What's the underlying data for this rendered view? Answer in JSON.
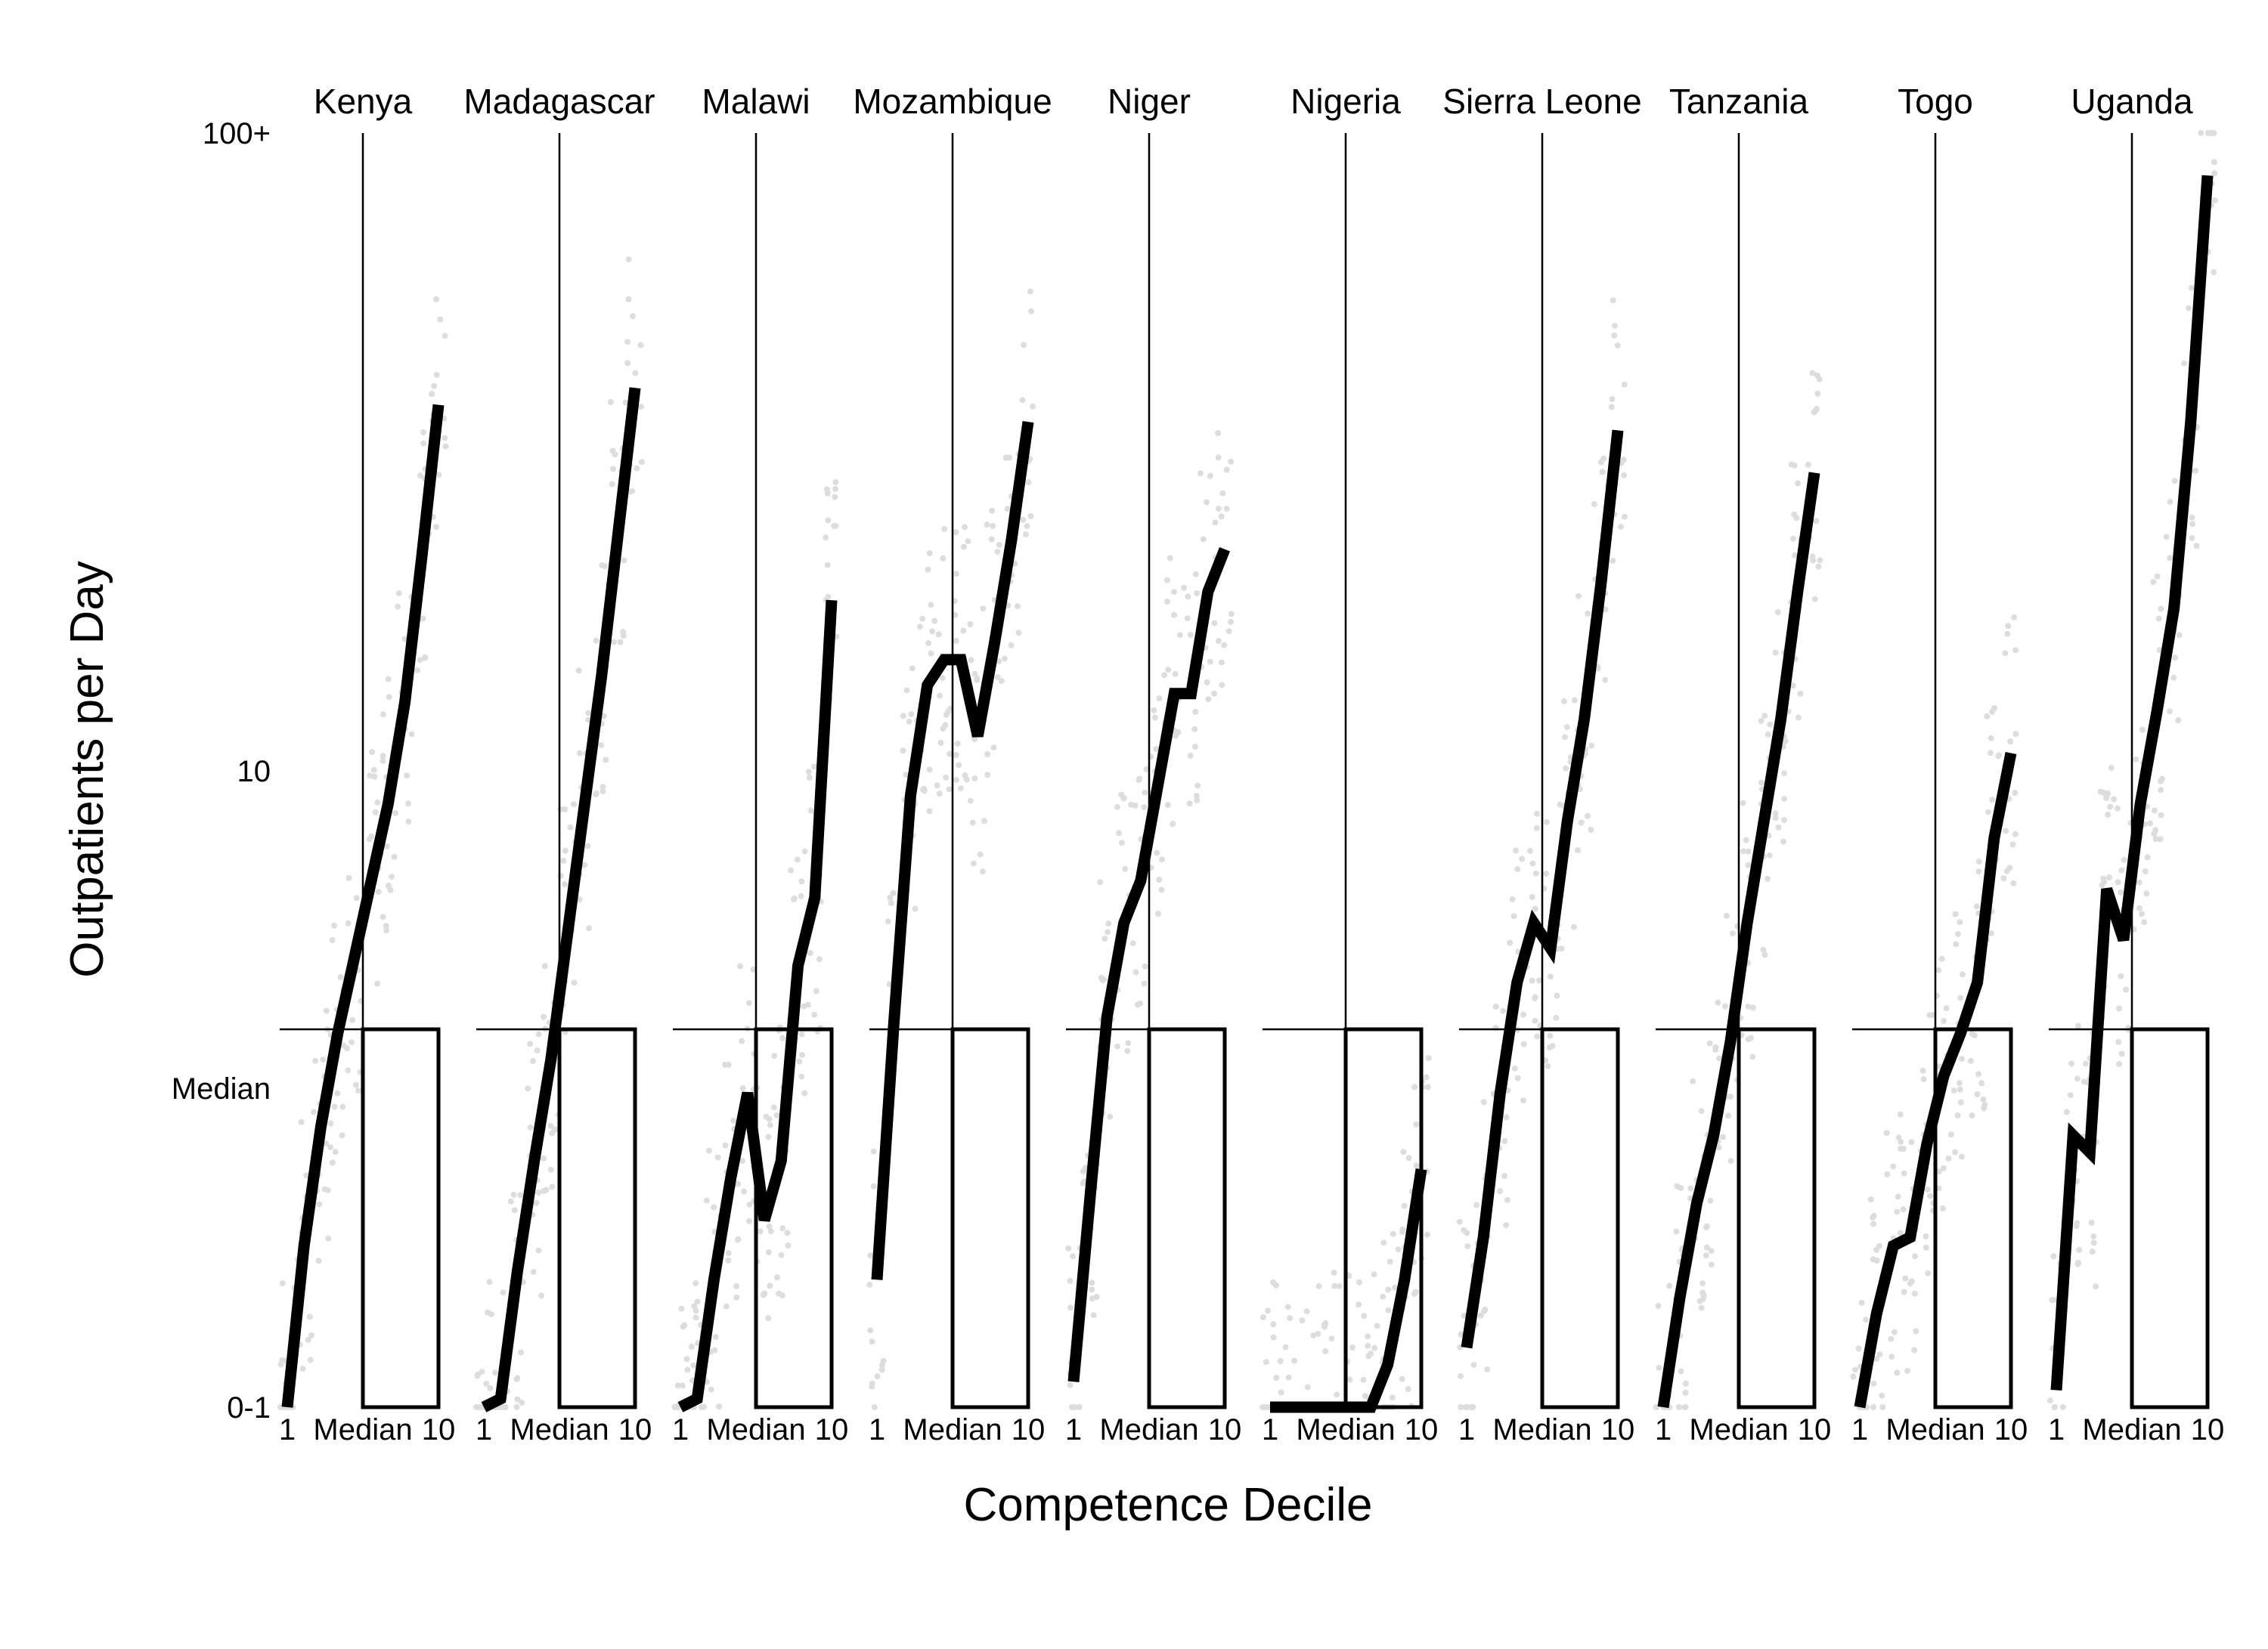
{
  "chart_data": {
    "type": "line",
    "title": "",
    "xlabel": "Competence Decile",
    "ylabel": "Outpatients per Day",
    "x_ticks": [
      "1",
      "Median",
      "10"
    ],
    "y_ticks": [
      "0-1",
      "Median",
      "10",
      "100+"
    ],
    "y_scale": "log",
    "x_range": [
      1,
      10
    ],
    "grid": false,
    "legend": "none",
    "reference_lines": "vertical line at the median competence decile; horizontal line at the median outpatients per day; box from the median to decile 10 and from 0-1 to the median",
    "deciles": [
      1,
      2,
      3,
      4,
      5,
      6,
      7,
      8,
      9,
      10
    ],
    "panels": [
      {
        "name": "Kenya",
        "values": [
          0.0,
          1.9,
          3.3,
          4.4,
          5.3,
          6.2,
          7.1,
          8.3,
          10.0,
          11.8
        ]
      },
      {
        "name": "Madagascar",
        "values": [
          0.0,
          0.1,
          1.6,
          2.9,
          4.1,
          5.6,
          7.1,
          8.6,
          10.3,
          12.0
        ]
      },
      {
        "name": "Malawi",
        "values": [
          0.0,
          0.1,
          1.5,
          2.7,
          3.7,
          2.2,
          2.9,
          5.2,
          6.0,
          9.5
        ]
      },
      {
        "name": "Mozambique",
        "values": [
          1.5,
          4.5,
          7.2,
          8.5,
          8.8,
          8.8,
          7.9,
          9.0,
          10.2,
          11.6
        ]
      },
      {
        "name": "Niger",
        "values": [
          0.3,
          2.5,
          4.6,
          5.7,
          6.2,
          7.3,
          8.4,
          8.4,
          9.6,
          10.1
        ]
      },
      {
        "name": "Nigeria",
        "values": [
          0.0,
          0.0,
          0.0,
          0.0,
          0.0,
          0.0,
          0.0,
          0.5,
          1.5,
          2.8
        ]
      },
      {
        "name": "Sierra Leone",
        "values": [
          0.7,
          2.0,
          3.7,
          5.0,
          5.7,
          5.4,
          6.9,
          8.1,
          9.7,
          11.5
        ]
      },
      {
        "name": "Tanzania",
        "values": [
          0.0,
          1.3,
          2.4,
          3.2,
          4.3,
          5.7,
          6.9,
          8.1,
          9.6,
          11.0
        ]
      },
      {
        "name": "Togo",
        "values": [
          0.0,
          1.1,
          1.9,
          2.0,
          3.1,
          3.9,
          4.4,
          5.0,
          6.7,
          7.7
        ]
      },
      {
        "name": "Uganda",
        "values": [
          0.2,
          3.2,
          3.0,
          6.1,
          5.5,
          7.1,
          8.2,
          9.4,
          11.6,
          14.5
        ]
      }
    ]
  }
}
